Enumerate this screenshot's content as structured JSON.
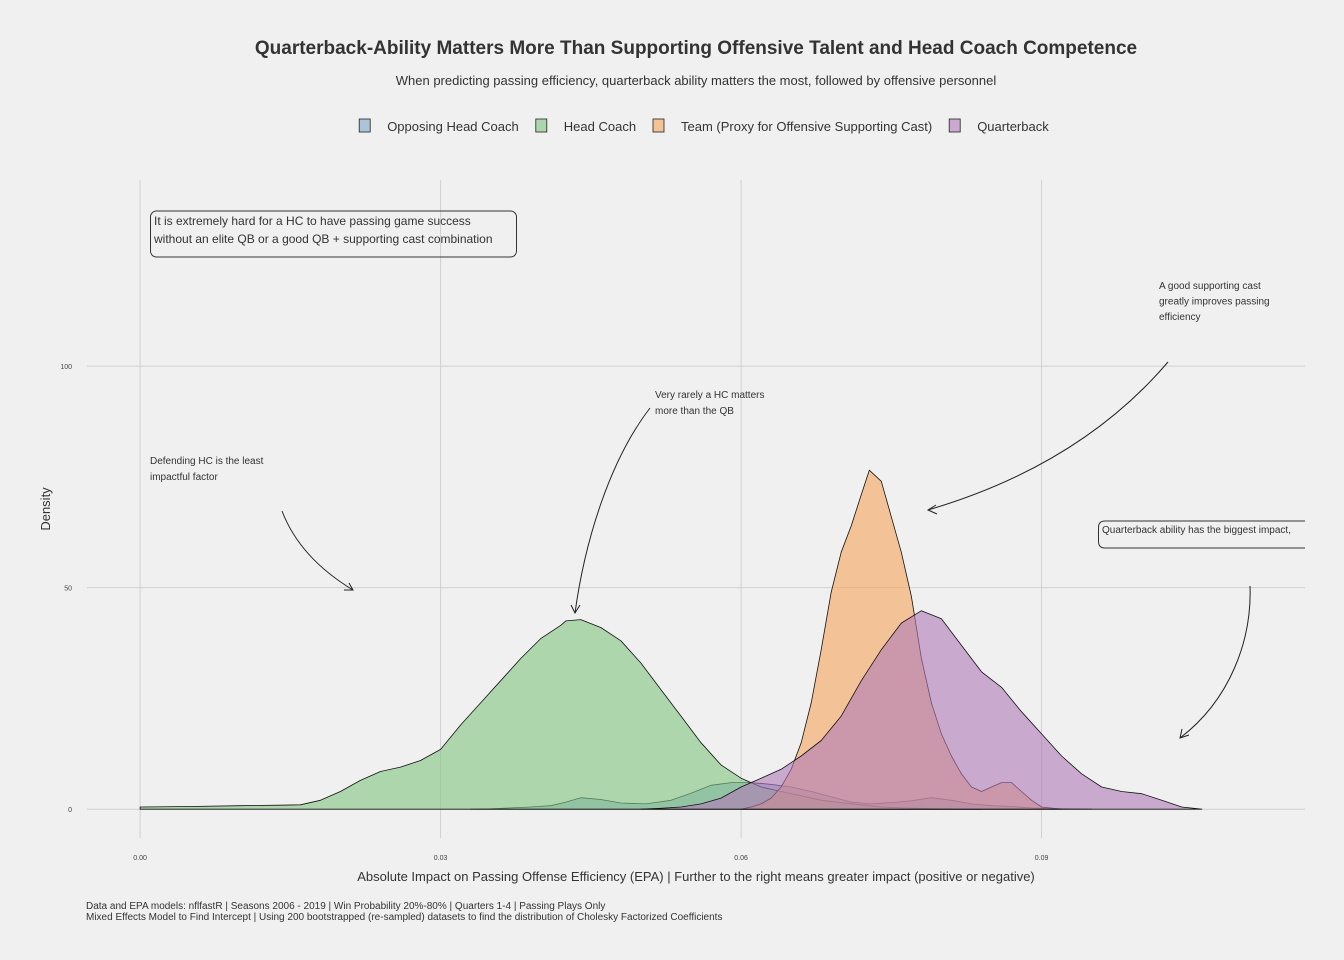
{
  "chart_data": {
    "type": "area",
    "title": "Quarterback-Ability Matters More Than Supporting Offensive Talent and Head Coach Competence",
    "subtitle": "When predicting passing efficiency, quarterback ability matters the most, followed by offensive personnel",
    "xlabel": "Absolute Impact on Passing Offense Efficiency (EPA) | Further to the right means greater impact (positive or negative)",
    "ylabel": "Density",
    "xlim": [
      -0.0053,
      0.1163
    ],
    "ylim": [
      -6.5,
      142
    ],
    "x_ticks": [
      {
        "value": 0.0,
        "label": "0.00"
      },
      {
        "value": 0.03,
        "label": "0.03"
      },
      {
        "value": 0.06,
        "label": "0.06"
      },
      {
        "value": 0.09,
        "label": "0.09"
      }
    ],
    "y_ticks": [
      {
        "value": 0,
        "label": "0"
      },
      {
        "value": 50,
        "label": "50"
      },
      {
        "value": 100,
        "label": "100"
      }
    ],
    "grid": true,
    "legend_position": "top",
    "series": [
      {
        "name": "Opposing Head Coach",
        "color": "#7fa7cc",
        "points": [
          [
            0.033,
            0
          ],
          [
            0.035,
            0.1
          ],
          [
            0.037,
            0.3
          ],
          [
            0.039,
            0.5
          ],
          [
            0.041,
            0.8
          ],
          [
            0.0425,
            1.6
          ],
          [
            0.044,
            2.6
          ],
          [
            0.046,
            2.2
          ],
          [
            0.048,
            1.4
          ],
          [
            0.0505,
            1.2
          ],
          [
            0.053,
            2.0
          ],
          [
            0.055,
            3.6
          ],
          [
            0.057,
            5.4
          ],
          [
            0.059,
            6.0
          ],
          [
            0.061,
            6.0
          ],
          [
            0.063,
            5.6
          ],
          [
            0.065,
            5.0
          ],
          [
            0.067,
            4.0
          ],
          [
            0.069,
            2.8
          ],
          [
            0.071,
            1.6
          ],
          [
            0.073,
            1.2
          ],
          [
            0.075,
            1.5
          ],
          [
            0.077,
            1.9
          ],
          [
            0.079,
            2.6
          ],
          [
            0.081,
            2.0
          ],
          [
            0.083,
            1.2
          ],
          [
            0.085,
            0.8
          ],
          [
            0.087,
            0.6
          ],
          [
            0.089,
            0.3
          ],
          [
            0.092,
            0.1
          ],
          [
            0.095,
            0
          ]
        ]
      },
      {
        "name": "Head Coach",
        "color": "#80c480",
        "points": [
          [
            0.0,
            0.5
          ],
          [
            0.005,
            0.6
          ],
          [
            0.01,
            0.8
          ],
          [
            0.014,
            0.9
          ],
          [
            0.016,
            1.0
          ],
          [
            0.018,
            2.0
          ],
          [
            0.02,
            4.0
          ],
          [
            0.022,
            6.5
          ],
          [
            0.024,
            8.5
          ],
          [
            0.026,
            9.5
          ],
          [
            0.028,
            11
          ],
          [
            0.03,
            13.5
          ],
          [
            0.032,
            19
          ],
          [
            0.034,
            24
          ],
          [
            0.036,
            29
          ],
          [
            0.038,
            34
          ],
          [
            0.04,
            38.5
          ],
          [
            0.042,
            41.5
          ],
          [
            0.0425,
            42.5
          ],
          [
            0.044,
            42.8
          ],
          [
            0.046,
            41
          ],
          [
            0.048,
            38
          ],
          [
            0.05,
            33
          ],
          [
            0.052,
            27
          ],
          [
            0.054,
            21
          ],
          [
            0.056,
            15
          ],
          [
            0.058,
            10
          ],
          [
            0.06,
            7
          ],
          [
            0.062,
            5
          ],
          [
            0.064,
            4
          ],
          [
            0.066,
            3
          ],
          [
            0.068,
            2
          ],
          [
            0.07,
            1.5
          ],
          [
            0.072,
            1
          ],
          [
            0.074,
            0.5
          ],
          [
            0.076,
            0.3
          ],
          [
            0.078,
            0.2
          ],
          [
            0.08,
            0.1
          ],
          [
            0.084,
            0
          ]
        ]
      },
      {
        "name": "Team (Proxy for Offensive Supporting Cast)",
        "color": "#f5a55c",
        "points": [
          [
            0.06,
            0
          ],
          [
            0.061,
            0.5
          ],
          [
            0.062,
            1.2
          ],
          [
            0.063,
            2.5
          ],
          [
            0.064,
            5
          ],
          [
            0.065,
            9
          ],
          [
            0.066,
            15
          ],
          [
            0.067,
            24
          ],
          [
            0.068,
            36
          ],
          [
            0.069,
            49
          ],
          [
            0.07,
            58
          ],
          [
            0.071,
            64
          ],
          [
            0.072,
            71
          ],
          [
            0.0728,
            76.5
          ],
          [
            0.074,
            74
          ],
          [
            0.075,
            66
          ],
          [
            0.076,
            58
          ],
          [
            0.077,
            48
          ],
          [
            0.078,
            34
          ],
          [
            0.079,
            24
          ],
          [
            0.08,
            17
          ],
          [
            0.081,
            12
          ],
          [
            0.082,
            8
          ],
          [
            0.083,
            5
          ],
          [
            0.084,
            4
          ],
          [
            0.085,
            5
          ],
          [
            0.086,
            6
          ],
          [
            0.087,
            6
          ],
          [
            0.088,
            4
          ],
          [
            0.089,
            2
          ],
          [
            0.09,
            0.5
          ],
          [
            0.092,
            0
          ]
        ]
      },
      {
        "name": "Quarterback",
        "color": "#b07ab8",
        "points": [
          [
            0.05,
            0
          ],
          [
            0.052,
            0.2
          ],
          [
            0.054,
            0.5
          ],
          [
            0.056,
            1.2
          ],
          [
            0.058,
            2.5
          ],
          [
            0.06,
            5
          ],
          [
            0.062,
            7
          ],
          [
            0.064,
            9
          ],
          [
            0.066,
            12
          ],
          [
            0.068,
            15.5
          ],
          [
            0.07,
            21
          ],
          [
            0.072,
            29
          ],
          [
            0.074,
            36
          ],
          [
            0.076,
            42
          ],
          [
            0.078,
            44.8
          ],
          [
            0.08,
            43
          ],
          [
            0.082,
            37
          ],
          [
            0.084,
            31
          ],
          [
            0.086,
            27.5
          ],
          [
            0.088,
            22
          ],
          [
            0.09,
            17
          ],
          [
            0.092,
            12
          ],
          [
            0.094,
            8
          ],
          [
            0.096,
            5
          ],
          [
            0.098,
            4
          ],
          [
            0.1,
            3.5
          ],
          [
            0.102,
            2
          ],
          [
            0.104,
            0.5
          ],
          [
            0.106,
            0
          ]
        ]
      }
    ],
    "annotations": [
      {
        "id": "hc-elite",
        "lines": [
          "It is extremely hard for a HC to have passing game success",
          "without an elite QB or a good QB + supporting cast combination"
        ],
        "boxed": true
      },
      {
        "id": "supporting-cast",
        "lines": [
          "A good supporting cast",
          "greatly improves passing",
          "efficiency"
        ],
        "boxed": false
      },
      {
        "id": "hc-rarely",
        "lines": [
          "Very rarely a HC matters",
          "more than the QB"
        ],
        "boxed": false
      },
      {
        "id": "defending-hc",
        "lines": [
          "Defending HC is the least",
          "impactful factor"
        ],
        "boxed": false
      },
      {
        "id": "qb-biggest",
        "lines": [
          "Quarterback ability has the biggest impact,"
        ],
        "boxed": true
      }
    ],
    "caption": [
      "Data and EPA models: nflfastR | Seasons 2006 - 2019 | Win Probability 20%-80% | Quarters 1-4 | Passing Plays Only",
      "Mixed Effects Model to Find Intercept | Using 200 bootstrapped (re-sampled) datasets to find the distribution of Cholesky Factorized Coefficients"
    ]
  }
}
